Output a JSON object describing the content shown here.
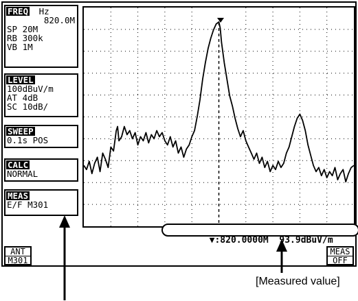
{
  "freq": {
    "title": "FREQ",
    "unit": "Hz",
    "value": "820.0M",
    "sp": "SP 20M",
    "rb": "RB 300k",
    "vb": "VB 1M"
  },
  "level": {
    "title": "LEVEL",
    "ref": "100dBuV/m",
    "at": "AT 4dB",
    "sc": "SC 10dB/"
  },
  "sweep": {
    "title": "SWEEP",
    "value": "0.1s POS"
  },
  "calc": {
    "title": "CALC",
    "value": "NORMAL"
  },
  "meas": {
    "title": "MEAS",
    "value": "E/F M301"
  },
  "marker": {
    "symbol": "▼",
    "readout": "▼:820.0000M  93.9dBuV/m"
  },
  "softkeys": {
    "left": {
      "top": "ANT",
      "bottom": "M301"
    },
    "right": {
      "top": "MEAS",
      "bottom": "OFF"
    }
  },
  "caption": "[Measured value]",
  "colors": {
    "trace": "#000000",
    "grid": "#000000",
    "background": "#ffffff"
  }
}
